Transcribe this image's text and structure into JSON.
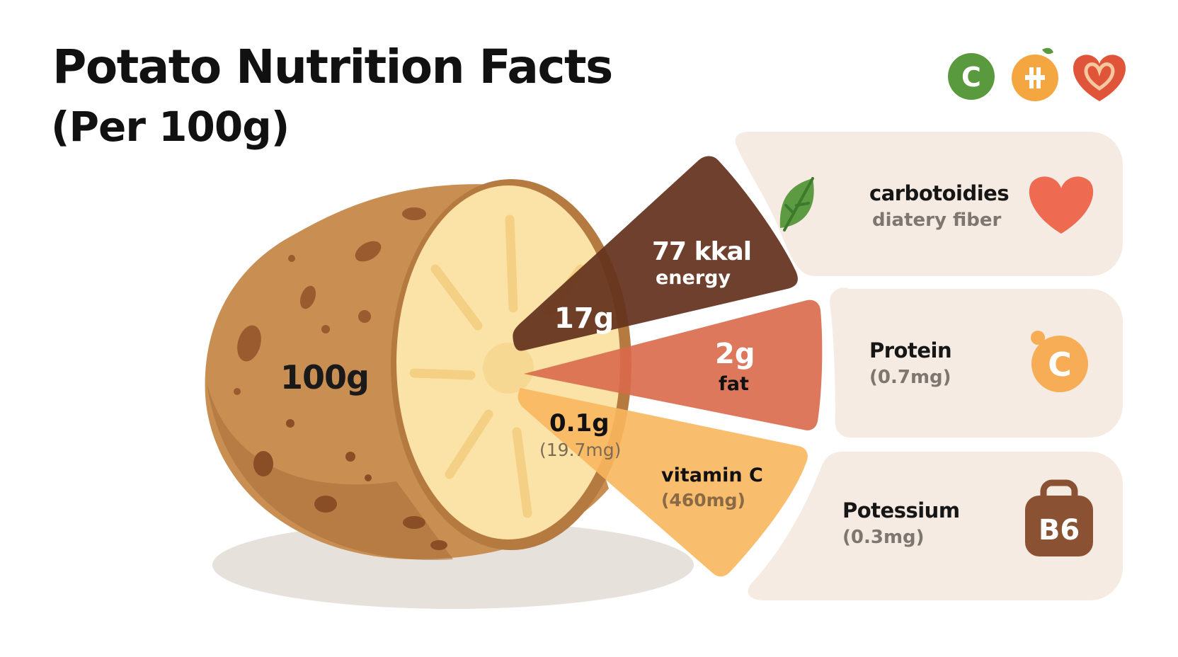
{
  "header": {
    "title": "Potato Nutrition Facts",
    "subtitle": "(Per 100g)",
    "icons": [
      {
        "name": "vitamin-c-badge-icon",
        "letter": "C",
        "color": "#5a9a3e"
      },
      {
        "name": "plus-badge-icon",
        "color": "#f4a640"
      },
      {
        "name": "heart-badge-icon",
        "color": "#e0553a"
      }
    ]
  },
  "potato": {
    "weight_label": "100g"
  },
  "wedges": [
    {
      "value": "17g",
      "label_value": "77 kkal",
      "label": "energy",
      "color": "#64321d"
    },
    {
      "value": "2g",
      "label": "fat",
      "color": "#d9694a"
    },
    {
      "value": "0.1g",
      "detail": "(19.7mg)",
      "label": "vitamin C",
      "label_detail": "(460mg)",
      "color": "#f8b65e"
    }
  ],
  "cards": [
    {
      "title": "carbotoidies",
      "subtitle": "diatery fiber",
      "left_icon": "leaf-icon",
      "right_icon": "heart-icon",
      "icon_color": "#ee6a50"
    },
    {
      "title": "Protein",
      "subtitle": "(0.7mg)",
      "right_icon": "vitamin-c-fruit-icon",
      "icon_letter": "C",
      "icon_color": "#f6ad55"
    },
    {
      "title": "Potessium",
      "subtitle": "(0.3mg)",
      "right_icon": "b6-bag-icon",
      "icon_letter": "B6",
      "icon_color": "#8a5233"
    }
  ],
  "colors": {
    "card_bg": "#f5ebe3",
    "potato_skin": "#c98f52",
    "potato_flesh": "#fbe3a8"
  }
}
